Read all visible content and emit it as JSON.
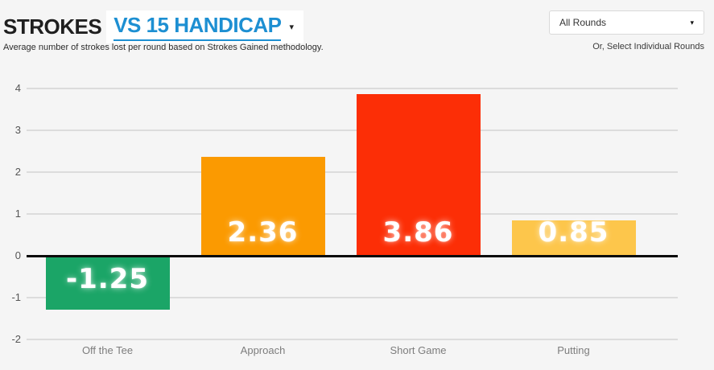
{
  "header": {
    "title_static": "STROKES",
    "title_dropdown": "VS 15 HANDICAP",
    "dropdown_caret": "▾",
    "subtitle": "Average number of strokes lost per round based on Strokes Gained methodology.",
    "accent_blue": "#1d8fd2"
  },
  "rounds_filter": {
    "selected": "All Rounds",
    "caret": "▾",
    "hint": "Or, Select Individual Rounds"
  },
  "chart_data": {
    "type": "bar",
    "title": "Strokes vs 15 Handicap",
    "categories": [
      "Off the Tee",
      "Approach",
      "Short Game",
      "Putting"
    ],
    "values": [
      -1.25,
      2.36,
      3.86,
      0.85
    ],
    "value_labels": [
      "-1.25",
      "2.36",
      "3.86",
      "0.85"
    ],
    "bar_colors": [
      "#1ba567",
      "#fb9a01",
      "#fc2e06",
      "#fdc64b"
    ],
    "ylim": [
      -2,
      4
    ],
    "yticks": [
      4,
      3,
      2,
      1,
      0,
      -1,
      -2
    ],
    "grid": true,
    "grid_color": "#dcdcdc",
    "zero_line_color": "#0a0a0a",
    "xlabel": "",
    "ylabel": "",
    "legend": "none"
  }
}
